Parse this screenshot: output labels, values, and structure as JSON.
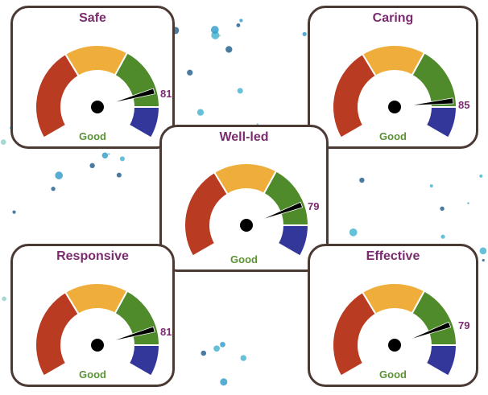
{
  "scale": {
    "min": 0,
    "max": 100
  },
  "bands": [
    {
      "name": "red",
      "from": 0,
      "to": 37,
      "color": "#b93b22"
    },
    {
      "name": "yellow",
      "from": 37,
      "to": 62,
      "color": "#efae3c"
    },
    {
      "name": "green",
      "from": 62,
      "to": 87.5,
      "color": "#4f8a2b"
    },
    {
      "name": "blue",
      "from": 87.5,
      "to": 100,
      "color": "#33379a"
    }
  ],
  "gauges": [
    {
      "title": "Safe",
      "value": "81",
      "status": "Good"
    },
    {
      "title": "Caring",
      "value": "85",
      "status": "Good"
    },
    {
      "title": "Well-led",
      "value": "79",
      "status": "Good"
    },
    {
      "title": "Responsive",
      "value": "81",
      "status": "Good"
    },
    {
      "title": "Effective",
      "value": "79",
      "status": "Good"
    }
  ]
}
